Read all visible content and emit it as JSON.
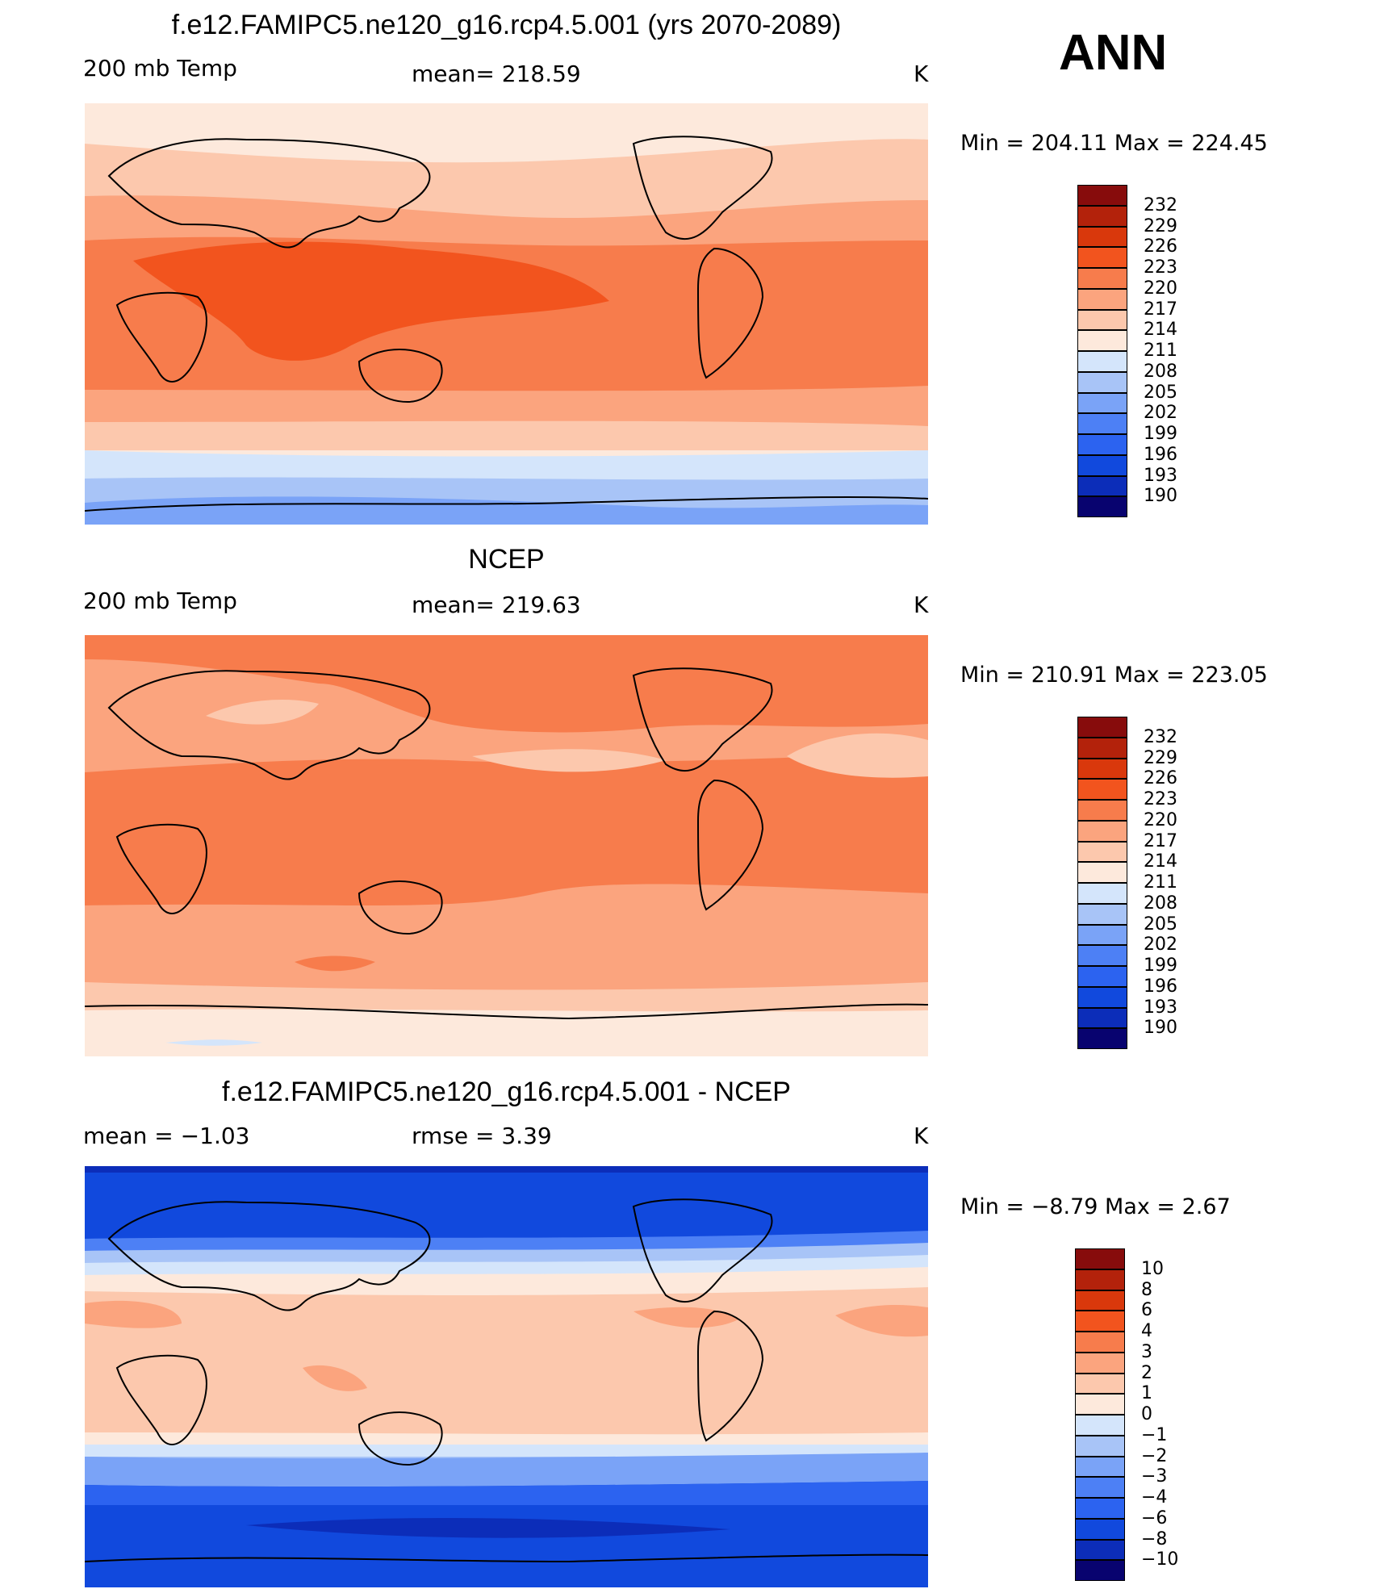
{
  "season": "ANN",
  "colors": {
    "abs": [
      "#08036f",
      "#0c2db9",
      "#1149dd",
      "#2c63f0",
      "#4d80f5",
      "#7aa3f7",
      "#a8c4f7",
      "#d4e5fb",
      "#fde9dc",
      "#fcc8ad",
      "#fba47e",
      "#f77c4c",
      "#f2541e",
      "#d9380c",
      "#b3220b",
      "#870c0c"
    ],
    "diff": [
      "#08036f",
      "#0c2db9",
      "#1149dd",
      "#2c63f0",
      "#4d80f5",
      "#7aa3f7",
      "#a8c4f7",
      "#d4e5fb",
      "#fde9dc",
      "#fcc8ad",
      "#fba47e",
      "#f77c4c",
      "#f2541e",
      "#d9380c",
      "#b3220b",
      "#870c0c"
    ]
  },
  "panels": [
    {
      "title": "f.e12.FAMIPC5.ne120_g16.rcp4.5.001 (yrs 2070-2089)",
      "left_label": "200 mb Temp",
      "center_label": "mean=  218.59",
      "units": "K",
      "minmax": "Min  =  204.11  Max  =  224.45",
      "colorbar_labels": [
        "232",
        "229",
        "226",
        "223",
        "220",
        "217",
        "214",
        "211",
        "208",
        "205",
        "202",
        "199",
        "196",
        "193",
        "190"
      ],
      "colorbar_palette": "abs"
    },
    {
      "title": "NCEP",
      "left_label": "200 mb Temp",
      "center_label": "mean=  219.63",
      "units": "K",
      "minmax": "Min  =  210.91  Max  =  223.05",
      "colorbar_labels": [
        "232",
        "229",
        "226",
        "223",
        "220",
        "217",
        "214",
        "211",
        "208",
        "205",
        "202",
        "199",
        "196",
        "193",
        "190"
      ],
      "colorbar_palette": "abs"
    },
    {
      "title": "f.e12.FAMIPC5.ne120_g16.rcp4.5.001 - NCEP",
      "left_label": "mean =    −1.03",
      "center_label": "rmse  =      3.39",
      "units": "K",
      "minmax": "Min  =    −8.79  Max  =      2.67",
      "colorbar_labels": [
        "10",
        "8",
        "6",
        "4",
        "3",
        "2",
        "1",
        "0",
        "−1",
        "−2",
        "−3",
        "−4",
        "−6",
        "−8",
        "−10"
      ],
      "colorbar_palette": "diff"
    }
  ]
}
